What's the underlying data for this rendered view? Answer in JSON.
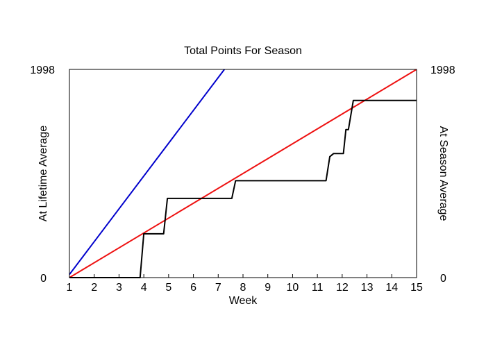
{
  "chart_data": {
    "type": "line",
    "title": "Total Points For Season",
    "xlabel": "Week",
    "ylabel_left": "At Lifetime Average",
    "ylabel_right": "At Season Average",
    "xlim": [
      1,
      15
    ],
    "ylim": [
      0,
      1998
    ],
    "x_ticks": [
      "1",
      "2",
      "3",
      "4",
      "5",
      "6",
      "7",
      "8",
      "9",
      "10",
      "11",
      "12",
      "13",
      "14",
      "15"
    ],
    "y_ticks_left": [
      "0",
      "1998"
    ],
    "y_ticks_right": [
      "0",
      "1998"
    ],
    "grid": false,
    "series": [
      {
        "color": "#0000cc",
        "points": [
          [
            1,
            30
          ],
          [
            7.25,
            1998
          ]
        ]
      },
      {
        "color": "#ee1111",
        "points": [
          [
            1,
            0
          ],
          [
            15,
            1998
          ]
        ]
      },
      {
        "color": "#000000",
        "points": [
          [
            1,
            0
          ],
          [
            3.85,
            0
          ],
          [
            4.0,
            420
          ],
          [
            4.8,
            420
          ],
          [
            4.95,
            760
          ],
          [
            7.55,
            760
          ],
          [
            7.7,
            930
          ],
          [
            11.35,
            930
          ],
          [
            11.5,
            1160
          ],
          [
            11.65,
            1190
          ],
          [
            12.05,
            1190
          ],
          [
            12.15,
            1420
          ],
          [
            12.25,
            1420
          ],
          [
            12.45,
            1700
          ],
          [
            15,
            1700
          ]
        ]
      }
    ],
    "axis_label_colors": {
      "left": "#0000cc",
      "right": "#ee1111"
    }
  }
}
